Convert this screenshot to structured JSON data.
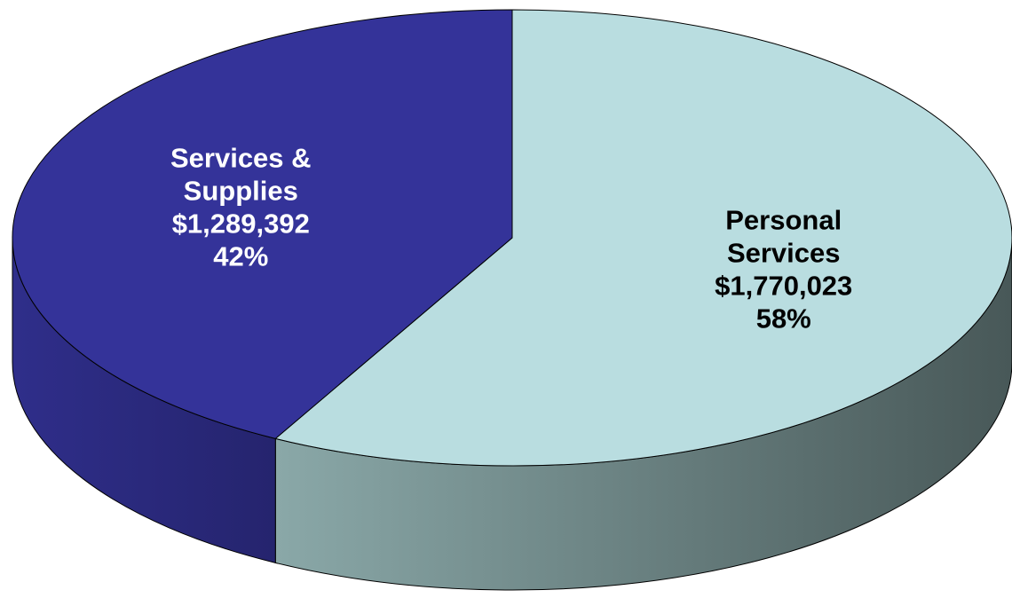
{
  "chart_data": {
    "type": "pie",
    "style": "3d",
    "start_angle_deg": 90,
    "direction": "clockwise",
    "slices": [
      {
        "name_lines": [
          "Personal",
          "Services"
        ],
        "amount": "$1,770,023",
        "percent_label": "58%",
        "value": 1770023,
        "top_color": "#b9dde0",
        "side_color_light": "#8aa8a8",
        "side_color_dark": "#485858",
        "label_color": "#000000"
      },
      {
        "name_lines": [
          "Services &",
          "Supplies"
        ],
        "amount": "$1,289,392",
        "percent_label": "42%",
        "value": 1289392,
        "top_color": "#343399",
        "side_color_light": "#2f2e8a",
        "side_color_dark": "#25246e",
        "label_color": "#ffffff"
      }
    ]
  }
}
